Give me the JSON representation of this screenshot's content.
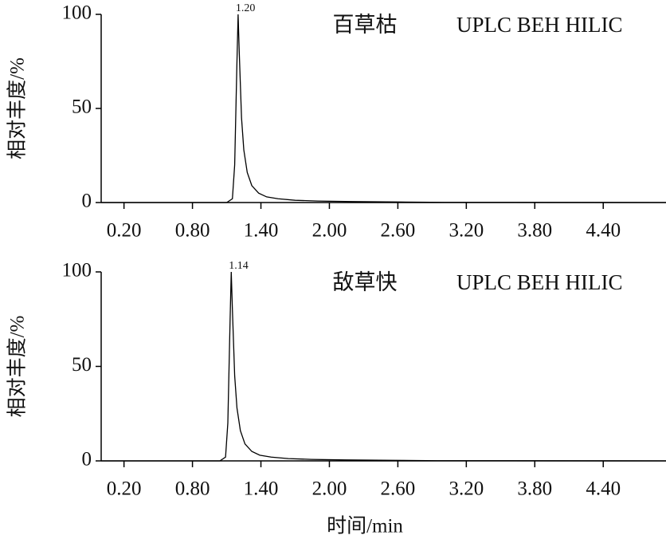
{
  "chart_data": [
    {
      "type": "line",
      "title": "百草枯",
      "annotation": "UPLC BEH HILIC",
      "peak_label": "1.20",
      "y_label": "相对丰度/%",
      "x": [
        0,
        1.1,
        1.15,
        1.17,
        1.19,
        1.2,
        1.21,
        1.23,
        1.25,
        1.28,
        1.32,
        1.38,
        1.45,
        1.55,
        1.7,
        1.9,
        2.2,
        2.6,
        3.0,
        4.95
      ],
      "values": [
        0,
        0,
        2,
        20,
        75,
        100,
        80,
        45,
        28,
        16,
        9,
        5,
        3,
        2,
        1.2,
        0.8,
        0.5,
        0.3,
        0.1,
        0
      ],
      "color": "#000000",
      "xlim": [
        0,
        4.95
      ],
      "ylim": [
        0,
        100
      ],
      "yticks": [
        0,
        50,
        100
      ],
      "xticks": [
        {
          "value": 0.2,
          "label": "0.20"
        },
        {
          "value": 0.8,
          "label": "0.80"
        },
        {
          "value": 1.4,
          "label": "1.40"
        },
        {
          "value": 2.0,
          "label": "2.00"
        },
        {
          "value": 2.6,
          "label": "2.60"
        },
        {
          "value": 3.2,
          "label": "3.20"
        },
        {
          "value": 3.8,
          "label": "3.80"
        },
        {
          "value": 4.4,
          "label": "4.40"
        }
      ]
    },
    {
      "type": "line",
      "title": "敌草快",
      "annotation": "UPLC BEH HILIC",
      "peak_label": "1.14",
      "y_label": "相对丰度/%",
      "x_label": "时间/min",
      "x": [
        0,
        1.04,
        1.09,
        1.11,
        1.13,
        1.14,
        1.15,
        1.17,
        1.19,
        1.22,
        1.26,
        1.32,
        1.39,
        1.49,
        1.64,
        1.84,
        2.14,
        2.54,
        2.94,
        4.95
      ],
      "values": [
        0,
        0,
        2,
        20,
        75,
        100,
        80,
        45,
        28,
        16,
        9,
        5,
        3,
        2,
        1.2,
        0.8,
        0.5,
        0.3,
        0.1,
        0
      ],
      "color": "#000000",
      "xlim": [
        0,
        4.95
      ],
      "ylim": [
        0,
        100
      ],
      "yticks": [
        0,
        50,
        100
      ],
      "xticks": [
        {
          "value": 0.2,
          "label": "0.20"
        },
        {
          "value": 0.8,
          "label": "0.80"
        },
        {
          "value": 1.4,
          "label": "1.40"
        },
        {
          "value": 2.0,
          "label": "2.00"
        },
        {
          "value": 2.6,
          "label": "2.60"
        },
        {
          "value": 3.2,
          "label": "3.20"
        },
        {
          "value": 3.8,
          "label": "3.80"
        },
        {
          "value": 4.4,
          "label": "4.40"
        }
      ]
    }
  ]
}
